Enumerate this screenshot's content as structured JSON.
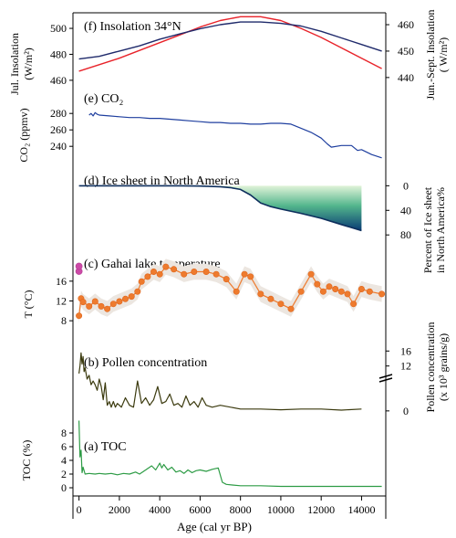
{
  "x_axis": {
    "label": "Age (cal yr BP)",
    "range": [
      -300,
      15200
    ],
    "ticks": [
      0,
      2000,
      4000,
      6000,
      8000,
      10000,
      12000,
      14000
    ]
  },
  "chart_data": [
    {
      "type": "line",
      "panel": "f",
      "title": "(f) Insolation 34°N",
      "left_axis": {
        "label_line1": "Jul. Insolation",
        "label_line2": "(W/m²)",
        "range": [
          455,
          512
        ],
        "ticks": [
          460,
          480,
          500
        ]
      },
      "right_axis": {
        "label_line1": "Jun.-Sept. Insolation",
        "label_line2": "( W/m²)",
        "range": [
          436.5,
          464.5
        ],
        "ticks": [
          440,
          450,
          460
        ]
      },
      "series": [
        {
          "color": "#e8232a",
          "axis": "left",
          "x": [
            0,
            1000,
            2000,
            3000,
            4000,
            5000,
            6000,
            7000,
            8000,
            9000,
            10000,
            11000,
            12000,
            13000,
            14000,
            15000
          ],
          "y": [
            467,
            472,
            477,
            483,
            489,
            495,
            501,
            506,
            509,
            509,
            506,
            500,
            493,
            485,
            477,
            469
          ]
        },
        {
          "color": "#1f2a6b",
          "axis": "right",
          "x": [
            0,
            1000,
            2000,
            3000,
            4000,
            5000,
            6000,
            7000,
            8000,
            9000,
            10000,
            11000,
            12000,
            13000,
            14000,
            15000
          ],
          "y": [
            447,
            448,
            450,
            452,
            454.5,
            456.5,
            458.5,
            460,
            461,
            461,
            460.5,
            459.5,
            457.5,
            455,
            452.5,
            450
          ]
        }
      ]
    },
    {
      "type": "line",
      "panel": "e",
      "title": "(e) CO₂",
      "left_axis": {
        "label": "CO₂ (ppmv)",
        "range": [
          218,
          288
        ],
        "ticks": [
          240,
          260,
          280
        ]
      },
      "series": [
        {
          "color": "#1f3f9f",
          "x": [
            500,
            600,
            700,
            800,
            900,
            1000,
            1500,
            2000,
            2500,
            3000,
            3500,
            4000,
            4500,
            5000,
            5500,
            6000,
            6500,
            7000,
            7500,
            8000,
            8500,
            9000,
            9500,
            10000,
            10500,
            11000,
            11500,
            12000,
            12300,
            12500,
            13000,
            13500,
            13800,
            14000,
            14500,
            15000
          ],
          "y": [
            278,
            280,
            277,
            281,
            279,
            278,
            277,
            276,
            275,
            275,
            274,
            274,
            273,
            272,
            271,
            270,
            269,
            269,
            268,
            268,
            267,
            267,
            268,
            268,
            267,
            262,
            257,
            250,
            243,
            239,
            241,
            241,
            235,
            236,
            230,
            226
          ]
        }
      ]
    },
    {
      "type": "area",
      "panel": "d",
      "title": "(d) Ice sheet in North America",
      "right_axis": {
        "label_line1": "Percent of Ice sheet",
        "label_line2": "in North America%",
        "range": [
          -5,
          102
        ],
        "ticks": [
          0,
          40,
          80
        ]
      },
      "series": [
        {
          "color": "#0d2e5c",
          "x": [
            0,
            1000,
            2000,
            3000,
            4000,
            5000,
            6000,
            7000,
            7500,
            8000,
            8500,
            9000,
            9500,
            10000,
            11000,
            12000,
            13000,
            14000
          ],
          "y": [
            0,
            0,
            0,
            0,
            0,
            0,
            0.5,
            1.5,
            3,
            6,
            15,
            28,
            34,
            38,
            45,
            53,
            63,
            73
          ]
        }
      ],
      "fill_gradient": {
        "start_x": 7000,
        "top": "#e0f3d8",
        "mid": "#52b58c",
        "bottom": "#083b74"
      }
    },
    {
      "type": "line",
      "panel": "c",
      "title": "(c) Gahai lake temperature",
      "left_axis": {
        "label": "T (°C)",
        "range": [
          6,
          21.5
        ],
        "ticks": [
          8,
          12,
          16
        ]
      },
      "series": [
        {
          "color": "#ee7b2e",
          "marker": "circle",
          "band_color": "#ece6e0",
          "band_halfwidth": 1.6,
          "x": [
            0,
            100,
            200,
            500,
            800,
            1100,
            1400,
            1700,
            2000,
            2300,
            2600,
            2900,
            3100,
            3400,
            3700,
            4000,
            4300,
            4700,
            5200,
            5700,
            6300,
            6800,
            7300,
            7800,
            8200,
            8500,
            9000,
            9500,
            10000,
            10500,
            11000,
            11500,
            11800,
            12100,
            12400,
            12700,
            13000,
            13300,
            13600,
            14000,
            14400,
            15000
          ],
          "y": [
            9,
            12.5,
            11.8,
            10.9,
            11.9,
            10.9,
            10.4,
            11.4,
            11.9,
            12.4,
            12.9,
            13.9,
            15.9,
            16.9,
            17.9,
            17.4,
            18.9,
            18.4,
            17.4,
            17.9,
            17.9,
            17.4,
            16.4,
            13.9,
            17.4,
            16.9,
            13.4,
            12.4,
            11.4,
            10.4,
            13.9,
            17.4,
            15.4,
            13.9,
            14.9,
            14.4,
            13.9,
            13.4,
            11.4,
            14.4,
            13.9,
            13.4
          ]
        },
        {
          "color": "#cc4aa7",
          "marker": "circle",
          "x": [
            0,
            0
          ],
          "y": [
            18,
            19
          ]
        }
      ]
    },
    {
      "type": "line",
      "panel": "b",
      "title": "(b) Pollen concentration",
      "right_axis": {
        "label_line1": "Pollen concentration",
        "label_line2": "(x 10³ grains/g)",
        "range": [
          -1.5,
          19
        ],
        "ticks": [
          0,
          12,
          16
        ]
      },
      "series": [
        {
          "color": "#3b3a0e",
          "x": [
            0,
            50,
            100,
            150,
            200,
            250,
            300,
            400,
            500,
            600,
            700,
            800,
            900,
            1000,
            1100,
            1200,
            1300,
            1400,
            1500,
            1600,
            1700,
            1800,
            1900,
            2000,
            2100,
            2300,
            2500,
            2700,
            2900,
            3100,
            3300,
            3500,
            3700,
            3900,
            4100,
            4300,
            4500,
            4700,
            4900,
            5100,
            5300,
            5500,
            5700,
            5900,
            6100,
            6300,
            6600,
            7000,
            8000,
            9000,
            10000,
            11000,
            12000,
            13000,
            14000
          ],
          "y": [
            10,
            12,
            15.5,
            12.5,
            14.5,
            10.5,
            11.5,
            8.5,
            9.5,
            7,
            8,
            7,
            5.5,
            8.5,
            6.5,
            3,
            7.5,
            1.5,
            2.5,
            1,
            2.5,
            1,
            2,
            1.5,
            1,
            3.5,
            1.5,
            1,
            8,
            2,
            3.5,
            1.5,
            3,
            6.5,
            2,
            2.5,
            4.5,
            1.5,
            2,
            1,
            4,
            1.5,
            2.5,
            1,
            3.5,
            1.5,
            1,
            1.5,
            0.5,
            0.5,
            0.3,
            0.5,
            0.5,
            0.2,
            0.5
          ]
        }
      ]
    },
    {
      "type": "line",
      "panel": "a",
      "title": "(a) TOC",
      "left_axis": {
        "label": "TOC (%)",
        "range": [
          -0.8,
          10
        ],
        "ticks": [
          0,
          2,
          4,
          6,
          8
        ]
      },
      "series": [
        {
          "color": "#2e9c46",
          "x": [
            0,
            50,
            100,
            150,
            200,
            300,
            500,
            800,
            1000,
            1300,
            1600,
            1900,
            2200,
            2500,
            2800,
            3000,
            3200,
            3400,
            3600,
            3800,
            4000,
            4100,
            4200,
            4400,
            4600,
            4800,
            5000,
            5200,
            5400,
            5600,
            5800,
            6000,
            6300,
            6600,
            6900,
            7100,
            7300,
            7600,
            8000,
            9000,
            10000,
            11000,
            12000,
            13000,
            14000,
            15000
          ],
          "y": [
            9.8,
            4.5,
            5.5,
            2.2,
            3,
            2,
            2.1,
            2,
            2.1,
            2,
            2.1,
            1.9,
            2.1,
            2,
            2.3,
            2,
            2.4,
            2.8,
            3.2,
            2.6,
            3.6,
            2.9,
            3.4,
            2.6,
            3,
            2.3,
            2.5,
            2.1,
            2.6,
            2.2,
            2.5,
            2.6,
            2.4,
            2.7,
            2.9,
            0.8,
            0.5,
            0.4,
            0.3,
            0.3,
            0.2,
            0.2,
            0.2,
            0.2,
            0.2,
            0.2
          ]
        }
      ]
    }
  ]
}
